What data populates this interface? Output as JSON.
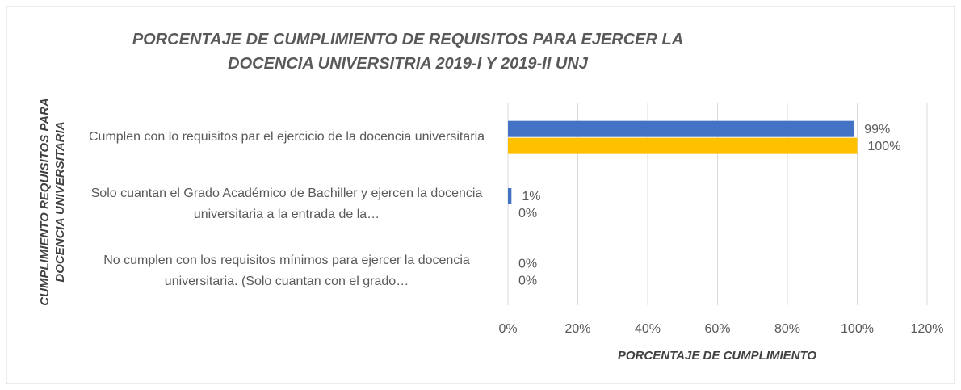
{
  "chart_data": {
    "type": "hbar",
    "title": "PORCENTAJE DE CUMPLIMIENTO DE REQUISITOS PARA EJERCER LA DOCENCIA UNIVERSITRIA 2019-I Y 2019-II UNJ",
    "x_label": "PORCENTAJE DE CUMPLIMIENTO",
    "y_label": "CUMPLIMIENTO REQUISITOS PARA DOCENCIA UNIVERSITARIA",
    "categories": [
      "Cumplen con lo requisitos par el ejercicio de la docencia universitaria",
      "Solo cuantan el Grado Académico de Bachiller y ejercen la docencia universitaria a la entrada de la…",
      "No cumplen con los requisitos mínimos para ejercer la docencia universitaria. (Solo cuantan con el grado…"
    ],
    "series": [
      {
        "color": "#4472c4",
        "values": [
          99,
          1,
          0
        ],
        "value_labels": [
          "99%",
          "1%",
          "0%"
        ]
      },
      {
        "color": "#ffc000",
        "values": [
          100,
          0,
          0
        ],
        "value_labels": [
          "100%",
          "0%",
          "0%"
        ]
      }
    ],
    "xlim": [
      0,
      120
    ],
    "xticks": [
      {
        "value": 0,
        "label": "0%"
      },
      {
        "value": 20,
        "label": "20%"
      },
      {
        "value": 40,
        "label": "40%"
      },
      {
        "value": 60,
        "label": "60%"
      },
      {
        "value": 80,
        "label": "80%"
      },
      {
        "value": 100,
        "label": "100%"
      },
      {
        "value": 120,
        "label": "120%"
      }
    ],
    "grid": true
  }
}
